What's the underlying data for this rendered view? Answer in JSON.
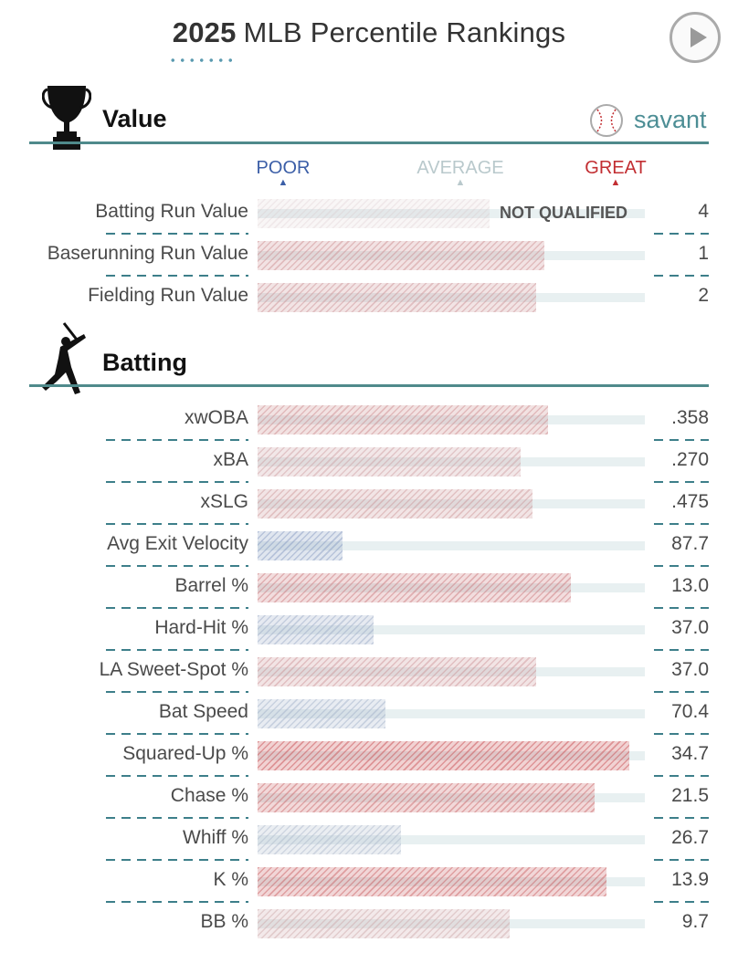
{
  "header": {
    "year": "2025",
    "title": "MLB Percentile Rankings"
  },
  "brand": {
    "name": "savant"
  },
  "legend": {
    "poor": {
      "label": "POOR",
      "color": "#3b5ea7"
    },
    "average": {
      "label": "AVERAGE",
      "color": "#b9c9cc"
    },
    "great": {
      "label": "GREAT",
      "color": "#c22e32"
    }
  },
  "sections": [
    {
      "title": "Value",
      "icon": "trophy-icon"
    },
    {
      "title": "Batting",
      "icon": "batter-icon"
    }
  ],
  "chart_data": [
    {
      "type": "bar",
      "section": "Value",
      "xlim": [
        0,
        100
      ],
      "rows": [
        {
          "label": "Batting Run Value",
          "percentile": 60,
          "value": "4",
          "status": "NOT QUALIFIED"
        },
        {
          "label": "Baserunning Run Value",
          "percentile": 74,
          "value": "1"
        },
        {
          "label": "Fielding Run Value",
          "percentile": 72,
          "value": "2"
        }
      ]
    },
    {
      "type": "bar",
      "section": "Batting",
      "xlim": [
        0,
        100
      ],
      "rows": [
        {
          "label": "xwOBA",
          "percentile": 75,
          "value": ".358"
        },
        {
          "label": "xBA",
          "percentile": 68,
          "value": ".270"
        },
        {
          "label": "xSLG",
          "percentile": 71,
          "value": ".475"
        },
        {
          "label": "Avg Exit Velocity",
          "percentile": 22,
          "value": "87.7"
        },
        {
          "label": "Barrel %",
          "percentile": 81,
          "value": "13.0"
        },
        {
          "label": "Hard-Hit %",
          "percentile": 30,
          "value": "37.0"
        },
        {
          "label": "LA Sweet-Spot %",
          "percentile": 72,
          "value": "37.0"
        },
        {
          "label": "Bat Speed",
          "percentile": 33,
          "value": "70.4"
        },
        {
          "label": "Squared-Up %",
          "percentile": 96,
          "value": "34.7"
        },
        {
          "label": "Chase %",
          "percentile": 87,
          "value": "21.5"
        },
        {
          "label": "Whiff %",
          "percentile": 37,
          "value": "26.7"
        },
        {
          "label": "K %",
          "percentile": 90,
          "value": "13.9"
        },
        {
          "label": "BB %",
          "percentile": 65,
          "value": "9.7"
        }
      ]
    }
  ]
}
